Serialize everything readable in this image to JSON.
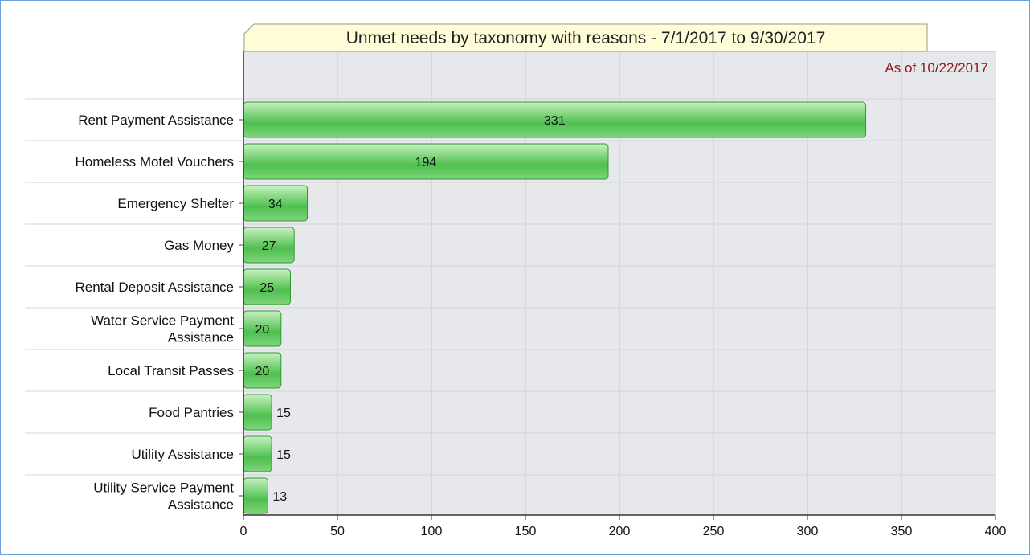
{
  "chart_data": {
    "type": "bar",
    "orientation": "horizontal",
    "title": "Unmet needs by taxonomy with reasons - 7/1/2017 to 9/30/2017",
    "subtitle": "As of 10/22/2017",
    "categories": [
      [
        "Rent Payment Assistance"
      ],
      [
        "Homeless Motel Vouchers"
      ],
      [
        "Emergency Shelter"
      ],
      [
        "Gas Money"
      ],
      [
        "Rental Deposit Assistance"
      ],
      [
        "Water Service Payment",
        "Assistance"
      ],
      [
        "Local Transit Passes"
      ],
      [
        "Food Pantries"
      ],
      [
        "Utility Assistance"
      ],
      [
        "Utility Service Payment",
        "Assistance"
      ]
    ],
    "values": [
      331,
      194,
      34,
      27,
      25,
      20,
      20,
      15,
      15,
      13
    ],
    "xlim": [
      0,
      400
    ],
    "x_ticks": [
      0,
      50,
      100,
      150,
      200,
      250,
      300,
      350,
      400
    ],
    "grid": true,
    "legend": "none"
  },
  "colors": {
    "bar_fill": "#5cc25c",
    "bar_stroke": "#2e9b2e",
    "plot_bg": "#e6e8ec",
    "grid": "#c8cad0",
    "title_bg": "#fffdd8",
    "subtitle": "#8b1a1a"
  }
}
